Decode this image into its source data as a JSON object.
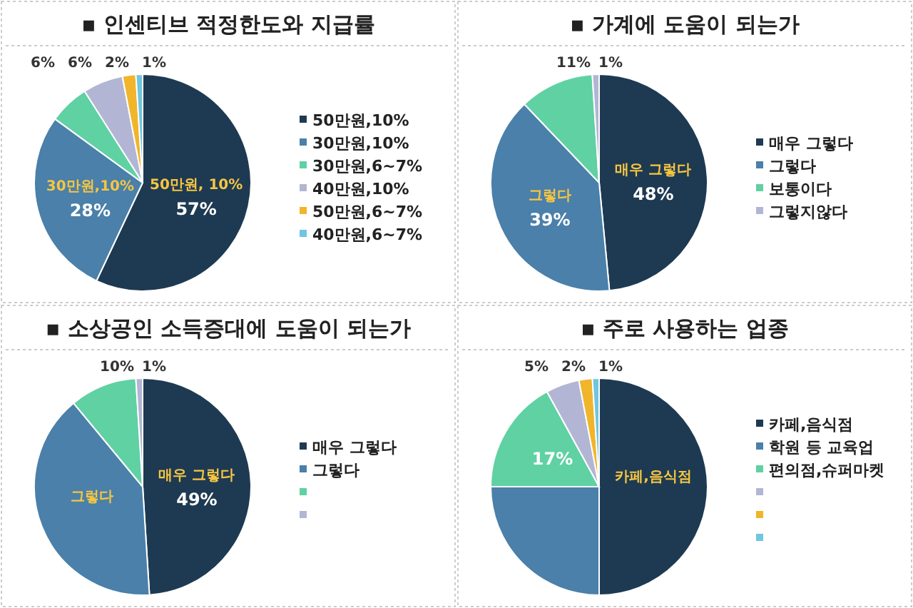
{
  "chart_data": [
    {
      "type": "pie",
      "title": "▪ 인센티브 적정한도와 지급률",
      "categories": [
        "50만원,10%",
        "30만원,10%",
        "30만원,6~7%",
        "40만원,10%",
        "50만원,6~7%",
        "40만원,6~7%"
      ],
      "values": [
        57,
        28,
        6,
        6,
        2,
        1
      ],
      "colors": [
        "#1e3a52",
        "#4a80aa",
        "#5fd1a3",
        "#b2b6d4",
        "#f0b52b",
        "#6fc6df"
      ],
      "value_labels": [
        "57%",
        "28%",
        "6%",
        "6%",
        "2%",
        "1%"
      ],
      "annotations": [
        {
          "text": "50만원, 10%",
          "x": "50만원,10%"
        },
        {
          "text": "30만원,10%",
          "x": "30만원,10%"
        }
      ],
      "legend": "right"
    },
    {
      "type": "pie",
      "title": "▪ 가계에 도움이 되는가",
      "categories": [
        "매우 그렇다",
        "그렇다",
        "보통이다",
        "그렇지않다"
      ],
      "values": [
        48,
        39,
        11,
        1
      ],
      "colors": [
        "#1e3a52",
        "#4a80aa",
        "#5fd1a3",
        "#b2b6d4"
      ],
      "value_labels": [
        "48%",
        "39%",
        "11%",
        "1%"
      ],
      "annotations": [
        {
          "text": "매우 그렇다",
          "x": "매우 그렇다"
        },
        {
          "text": "그렇다",
          "x": "그렇다"
        }
      ],
      "legend": "right"
    },
    {
      "type": "pie",
      "title": "▪ 소상공인 소득증대에 도움이 되는가",
      "categories": [
        "매우 그렇다",
        "그렇다",
        null,
        null
      ],
      "values": [
        49,
        40,
        10,
        1
      ],
      "colors": [
        "#1e3a52",
        "#4a80aa",
        "#5fd1a3",
        "#b2b6d4"
      ],
      "value_labels": [
        "49%",
        null,
        "10%",
        "1%"
      ],
      "annotations": [
        {
          "text": "매우 그렇다",
          "x": "매우 그렇다"
        },
        {
          "text": "그렇다",
          "x": "그렇다"
        }
      ],
      "legend": "right"
    },
    {
      "type": "pie",
      "title": "▪ 주로 사용하는 업종",
      "categories": [
        "카페,음식점",
        "학원 등 교육업",
        "편의점,슈퍼마켓",
        null,
        null,
        null
      ],
      "values": [
        50,
        25,
        17,
        5,
        2,
        1
      ],
      "colors": [
        "#1e3a52",
        "#4a80aa",
        "#5fd1a3",
        "#b2b6d4",
        "#f0b52b",
        "#6fc6df"
      ],
      "value_labels": [
        null,
        null,
        "17%",
        "5%",
        "2%",
        "1%"
      ],
      "annotations": [
        {
          "text": "카페,음식점",
          "x": "카페,음식점"
        }
      ],
      "legend": "right"
    }
  ]
}
